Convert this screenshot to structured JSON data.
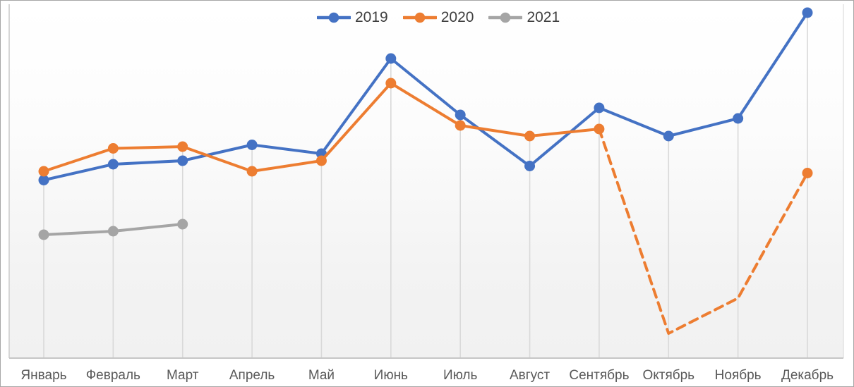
{
  "chart_data": {
    "type": "line",
    "title": "",
    "xlabel": "",
    "ylabel": "",
    "categories": [
      "Январь",
      "Февраль",
      "Март",
      "Апрель",
      "Май",
      "Июнь",
      "Июль",
      "Август",
      "Сентябрь",
      "Октябрь",
      "Ноябрь",
      "Декабрь"
    ],
    "series": [
      {
        "name": "2019",
        "color": "#4472C4",
        "line_style": "solid",
        "markers": "all",
        "values": [
          50.5,
          55,
          56,
          60.5,
          58,
          85,
          69,
          54.5,
          71,
          63,
          68,
          98
        ]
      },
      {
        "name": "2020",
        "color": "#ED7D31",
        "line_style": "solid Январь–Сентябрь, dashed Сентябрь–Декабрь",
        "segments": [
          {
            "from": 0,
            "to": 8,
            "dashed": false
          },
          {
            "from": 8,
            "to": 11,
            "dashed": true
          }
        ],
        "marker_indices": [
          0,
          1,
          2,
          3,
          4,
          5,
          6,
          7,
          8,
          11
        ],
        "values": [
          53,
          59.5,
          60,
          53,
          56,
          78,
          66,
          63,
          65,
          7,
          17,
          52.5
        ]
      },
      {
        "name": "2021",
        "color": "#A5A5A5",
        "line_style": "solid",
        "markers": "all",
        "values": [
          35,
          36,
          38,
          null,
          null,
          null,
          null,
          null,
          null,
          null,
          null,
          null
        ]
      }
    ],
    "ylim": [
      0,
      100
    ],
    "y_axis_labels_visible": false,
    "value_scale_note": "relative 0-100 scale estimated from pixels; chart shows no y-axis tick labels",
    "grid": "vertical drop lines from each category's top data point down to x-axis",
    "legend_position": "top-center"
  },
  "legend": {
    "items": [
      {
        "label": "2019",
        "color": "#4472C4"
      },
      {
        "label": "2020",
        "color": "#ED7D31"
      },
      {
        "label": "2021",
        "color": "#A5A5A5"
      }
    ]
  },
  "colors": {
    "axis_line": "#c6c6c6",
    "drop_line": "#d9d9d9",
    "plot_edge_left": "#d6d6d6",
    "plot_edge_right": "#e3e3e3",
    "plot_bg_top": "#ffffff",
    "plot_bg_bottom": "#f1f1f1",
    "x_label_text": "#595959",
    "legend_text": "#3f3f3f",
    "frame_border": "#a6a6a6"
  }
}
